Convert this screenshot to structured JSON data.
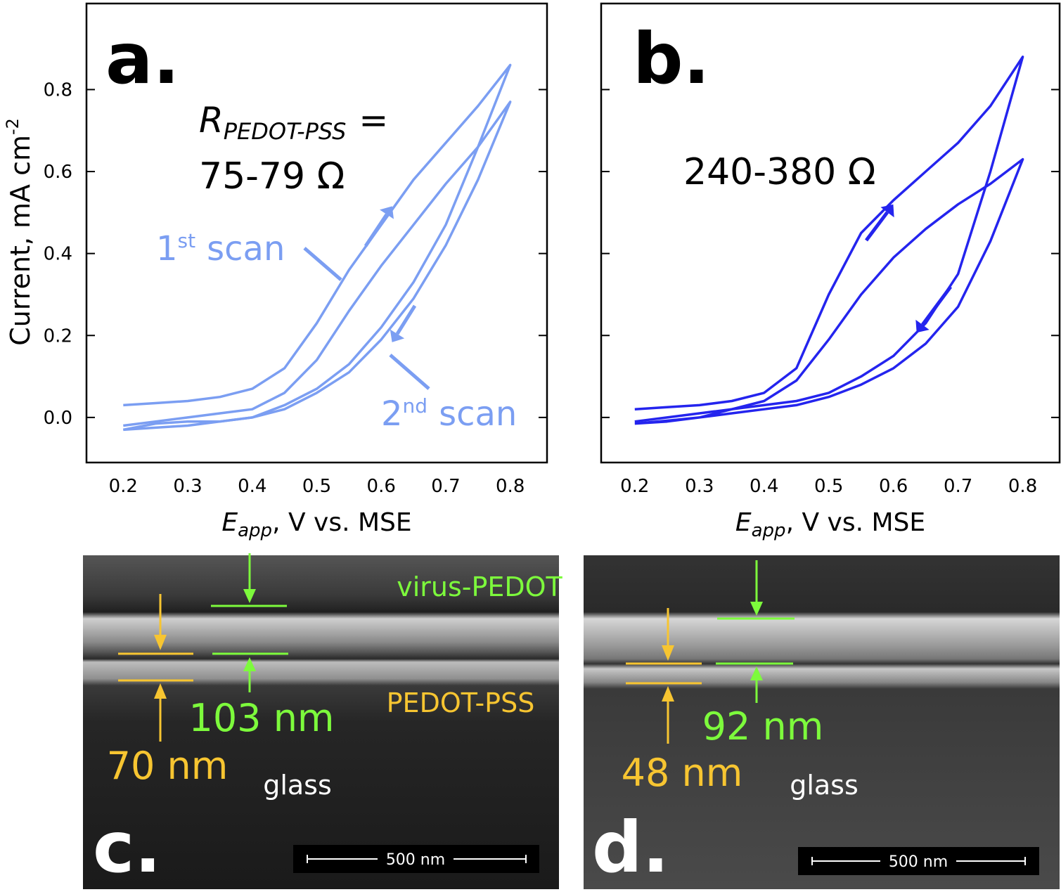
{
  "chart_data": [
    {
      "type": "line",
      "panel_label": "a.",
      "xlabel": {
        "symbol": "E",
        "sub": "app",
        "rest": ", V vs. MSE"
      },
      "ylabel": {
        "text": "Current, mA cm",
        "sup": "-2"
      },
      "resistance_label": {
        "symbol": "R",
        "sub": "PEDOT-PSS",
        "rest": "="
      },
      "resistance": "75-79 Ω",
      "scan_labels": [
        {
          "text": "1",
          "sup": "st",
          "rest": "scan"
        },
        {
          "text": "2",
          "sup": "nd",
          "rest": "scan"
        }
      ],
      "xlim": [
        0.143,
        0.857
      ],
      "ylim": [
        -0.11,
        1.01
      ],
      "xticks": [
        0.2,
        0.3,
        0.4,
        0.5,
        0.6,
        0.7,
        0.8
      ],
      "yticks": [
        {
          "value": 0,
          "label": "0.0"
        },
        0.2,
        0.4,
        0.6,
        0.8
      ],
      "ytick_labels": true,
      "x": [
        0.2,
        0.25,
        0.3,
        0.35,
        0.4,
        0.45,
        0.5,
        0.55,
        0.6,
        0.65,
        0.7,
        0.75,
        0.8,
        0.75,
        0.7,
        0.65,
        0.6,
        0.55,
        0.5,
        0.45,
        0.4,
        0.35,
        0.3,
        0.25,
        0.2
      ],
      "series": [
        {
          "color": "#7b9ef2",
          "values": [
            0.03,
            0.035,
            0.04,
            0.05,
            0.07,
            0.12,
            0.23,
            0.36,
            0.47,
            0.58,
            0.67,
            0.76,
            0.86,
            0.66,
            0.47,
            0.33,
            0.22,
            0.13,
            0.07,
            0.03,
            0.0,
            -0.01,
            -0.01,
            -0.015,
            -0.03
          ]
        },
        {
          "color": "#7b9ef2",
          "values": [
            -0.02,
            -0.01,
            0.0,
            0.01,
            0.02,
            0.06,
            0.14,
            0.26,
            0.37,
            0.47,
            0.57,
            0.66,
            0.77,
            0.58,
            0.42,
            0.29,
            0.19,
            0.11,
            0.06,
            0.02,
            0.0,
            -0.01,
            -0.02,
            -0.025,
            -0.03
          ]
        }
      ]
    },
    {
      "type": "line",
      "panel_label": "b.",
      "xlabel": {
        "symbol": "E",
        "sub": "app",
        "rest": ", V vs. MSE"
      },
      "resistance": "240-380 Ω",
      "xlim": [
        0.148,
        0.857
      ],
      "ylim": [
        -0.11,
        1.01
      ],
      "xticks": [
        0.2,
        0.3,
        0.4,
        0.5,
        0.6,
        0.7,
        0.8
      ],
      "yticks": [
        0,
        0.2,
        0.4,
        0.6,
        0.8
      ],
      "ytick_labels": false,
      "x": [
        0.2,
        0.25,
        0.3,
        0.35,
        0.4,
        0.45,
        0.5,
        0.55,
        0.6,
        0.65,
        0.7,
        0.75,
        0.8,
        0.75,
        0.7,
        0.65,
        0.6,
        0.55,
        0.5,
        0.45,
        0.4,
        0.35,
        0.3,
        0.25,
        0.2
      ],
      "series": [
        {
          "color": "#2424ee",
          "values": [
            0.02,
            0.025,
            0.03,
            0.04,
            0.06,
            0.12,
            0.3,
            0.45,
            0.53,
            0.6,
            0.67,
            0.76,
            0.88,
            0.6,
            0.35,
            0.23,
            0.15,
            0.1,
            0.06,
            0.04,
            0.03,
            0.02,
            0.01,
            0.0,
            -0.01
          ]
        },
        {
          "color": "#2424ee",
          "values": [
            -0.015,
            -0.008,
            0.0,
            0.02,
            0.04,
            0.09,
            0.19,
            0.3,
            0.39,
            0.46,
            0.52,
            0.57,
            0.63,
            0.43,
            0.27,
            0.18,
            0.12,
            0.08,
            0.05,
            0.03,
            0.02,
            0.01,
            0.0,
            -0.01,
            -0.015
          ]
        }
      ]
    }
  ],
  "sem_panels": [
    {
      "panel_label": "c.",
      "top_layer": "virus-PEDOT",
      "bottom_layer": "PEDOT-PSS",
      "substrate": "glass",
      "green_thickness": "103 nm",
      "yellow_thickness": "70 nm",
      "scale_bar": "500 nm"
    },
    {
      "panel_label": "d.",
      "substrate": "glass",
      "green_thickness": "92 nm",
      "yellow_thickness": "48 nm",
      "scale_bar": "500 nm"
    }
  ]
}
